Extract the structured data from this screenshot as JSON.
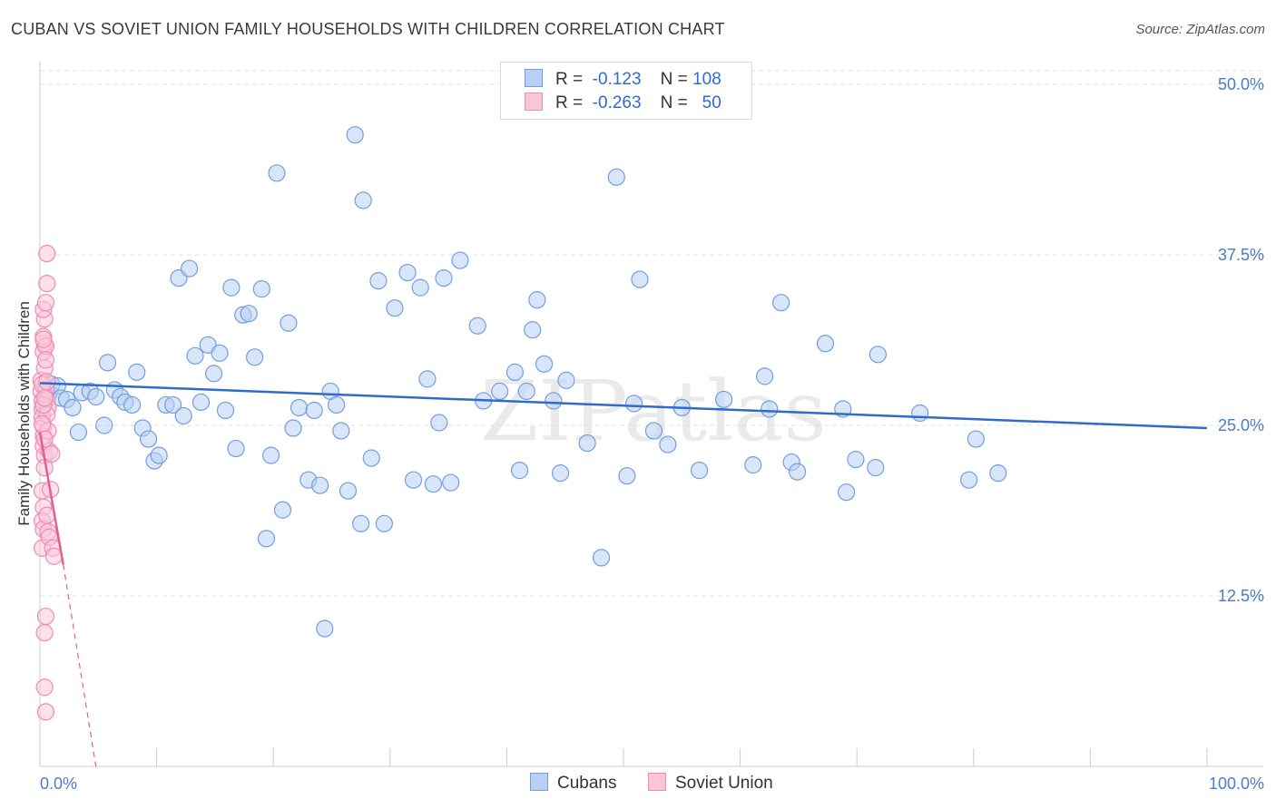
{
  "title": "CUBAN VS SOVIET UNION FAMILY HOUSEHOLDS WITH CHILDREN CORRELATION CHART",
  "source": "Source: ZipAtlas.com",
  "watermark": "ZIPatlas",
  "legend": {
    "rows": [
      {
        "r_label": "R =",
        "r_value": "-0.123",
        "n_label": "N =",
        "n_value": "108"
      },
      {
        "r_label": "R =",
        "r_value": "-0.263",
        "n_label": "N =",
        "n_value": "50"
      }
    ]
  },
  "bottom_legend": [
    "Cubans",
    "Soviet Union"
  ],
  "chart_data": {
    "type": "scatter",
    "title": "CUBAN VS SOVIET UNION FAMILY HOUSEHOLDS WITH CHILDREN CORRELATION CHART",
    "xlabel": "",
    "ylabel": "Family Households with Children",
    "xlim": [
      0,
      100
    ],
    "ylim": [
      0,
      51
    ],
    "x_tick_labels": [
      "0.0%",
      "100.0%"
    ],
    "y_ticks": [
      12.5,
      25.0,
      37.5,
      50.0
    ],
    "y_tick_labels": [
      "12.5%",
      "25.0%",
      "37.5%",
      "50.0%"
    ],
    "grid": true,
    "legend_position": "top-center",
    "colors": {
      "Cubans": "#6f9fe0",
      "Soviet Union": "#f08ab0",
      "Cubans_line": "#2f6bcc",
      "Soviet_line": "#e0608f"
    },
    "series": [
      {
        "name": "Cubans",
        "points": [
          [
            0.8,
            27.4
          ],
          [
            1.0,
            28.0
          ],
          [
            1.5,
            27.9
          ],
          [
            1.8,
            27.0
          ],
          [
            2.3,
            26.9
          ],
          [
            2.8,
            26.3
          ],
          [
            3.3,
            24.5
          ],
          [
            3.6,
            27.4
          ],
          [
            4.3,
            27.5
          ],
          [
            4.8,
            27.1
          ],
          [
            5.5,
            25.0
          ],
          [
            5.8,
            29.6
          ],
          [
            6.4,
            27.6
          ],
          [
            6.9,
            27.1
          ],
          [
            7.3,
            26.7
          ],
          [
            7.9,
            26.5
          ],
          [
            8.3,
            28.9
          ],
          [
            8.8,
            24.8
          ],
          [
            9.3,
            24.0
          ],
          [
            9.8,
            22.4
          ],
          [
            10.2,
            22.8
          ],
          [
            10.8,
            26.5
          ],
          [
            11.4,
            26.5
          ],
          [
            11.9,
            35.8
          ],
          [
            12.3,
            25.7
          ],
          [
            12.8,
            36.5
          ],
          [
            13.3,
            30.1
          ],
          [
            13.8,
            26.7
          ],
          [
            14.4,
            30.9
          ],
          [
            14.9,
            28.8
          ],
          [
            15.4,
            30.3
          ],
          [
            15.9,
            26.1
          ],
          [
            16.4,
            35.1
          ],
          [
            16.8,
            23.3
          ],
          [
            17.4,
            33.1
          ],
          [
            17.9,
            33.2
          ],
          [
            18.4,
            30.0
          ],
          [
            19.0,
            35.0
          ],
          [
            19.4,
            16.7
          ],
          [
            19.8,
            22.8
          ],
          [
            20.3,
            43.5
          ],
          [
            20.8,
            18.8
          ],
          [
            21.3,
            32.5
          ],
          [
            21.7,
            24.8
          ],
          [
            22.2,
            26.3
          ],
          [
            23.0,
            21.0
          ],
          [
            23.5,
            26.1
          ],
          [
            24.0,
            20.6
          ],
          [
            24.4,
            10.1
          ],
          [
            24.9,
            27.5
          ],
          [
            25.4,
            26.5
          ],
          [
            25.8,
            24.6
          ],
          [
            26.4,
            20.2
          ],
          [
            27.0,
            46.3
          ],
          [
            27.5,
            17.8
          ],
          [
            27.7,
            41.5
          ],
          [
            28.4,
            22.6
          ],
          [
            29.0,
            35.6
          ],
          [
            29.5,
            17.8
          ],
          [
            30.4,
            33.6
          ],
          [
            31.5,
            36.2
          ],
          [
            32.0,
            21.0
          ],
          [
            32.6,
            35.1
          ],
          [
            33.2,
            28.4
          ],
          [
            33.7,
            20.7
          ],
          [
            34.2,
            25.2
          ],
          [
            34.6,
            35.8
          ],
          [
            35.2,
            20.8
          ],
          [
            36.0,
            37.1
          ],
          [
            37.5,
            32.3
          ],
          [
            38.0,
            26.8
          ],
          [
            39.4,
            27.5
          ],
          [
            40.7,
            28.9
          ],
          [
            41.1,
            21.7
          ],
          [
            41.7,
            27.5
          ],
          [
            42.2,
            32.0
          ],
          [
            42.6,
            34.2
          ],
          [
            43.2,
            29.5
          ],
          [
            44.0,
            26.8
          ],
          [
            44.6,
            21.5
          ],
          [
            45.1,
            28.3
          ],
          [
            46.9,
            23.7
          ],
          [
            48.1,
            15.3
          ],
          [
            49.4,
            43.2
          ],
          [
            50.3,
            21.3
          ],
          [
            50.9,
            26.6
          ],
          [
            51.4,
            35.7
          ],
          [
            52.6,
            24.6
          ],
          [
            53.8,
            23.6
          ],
          [
            55.0,
            26.3
          ],
          [
            56.5,
            21.7
          ],
          [
            58.6,
            26.9
          ],
          [
            61.1,
            22.1
          ],
          [
            62.1,
            28.6
          ],
          [
            62.5,
            26.2
          ],
          [
            63.5,
            34.0
          ],
          [
            64.4,
            22.3
          ],
          [
            64.9,
            21.6
          ],
          [
            67.3,
            31.0
          ],
          [
            68.8,
            26.2
          ],
          [
            69.1,
            20.1
          ],
          [
            69.9,
            22.5
          ],
          [
            71.6,
            21.9
          ],
          [
            71.8,
            30.2
          ],
          [
            75.4,
            25.9
          ],
          [
            79.6,
            21.0
          ],
          [
            80.2,
            24.0
          ],
          [
            82.1,
            21.5
          ]
        ],
        "trend": {
          "x": [
            0.0,
            100.0
          ],
          "y": [
            28.1,
            24.8
          ],
          "style": "solid"
        }
      },
      {
        "name": "Soviet Union",
        "points": [
          [
            0.1,
            28.3
          ],
          [
            0.1,
            27.5
          ],
          [
            0.2,
            26.8
          ],
          [
            0.2,
            26.2
          ],
          [
            0.2,
            25.6
          ],
          [
            0.3,
            24.9
          ],
          [
            0.3,
            24.2
          ],
          [
            0.3,
            23.5
          ],
          [
            0.4,
            22.8
          ],
          [
            0.4,
            21.9
          ],
          [
            0.2,
            20.2
          ],
          [
            0.3,
            19.0
          ],
          [
            0.2,
            18.0
          ],
          [
            0.3,
            17.4
          ],
          [
            0.2,
            16.0
          ],
          [
            0.4,
            29.2
          ],
          [
            0.3,
            30.4
          ],
          [
            0.4,
            31.0
          ],
          [
            0.3,
            31.5
          ],
          [
            0.4,
            32.8
          ],
          [
            0.3,
            33.5
          ],
          [
            0.5,
            34.0
          ],
          [
            0.6,
            35.4
          ],
          [
            0.6,
            37.6
          ],
          [
            0.5,
            30.8
          ],
          [
            0.5,
            27.6
          ],
          [
            0.6,
            26.9
          ],
          [
            0.7,
            26.3
          ],
          [
            0.6,
            25.8
          ],
          [
            0.7,
            24.6
          ],
          [
            0.8,
            23.1
          ],
          [
            1.0,
            22.9
          ],
          [
            0.9,
            20.3
          ],
          [
            0.6,
            18.4
          ],
          [
            0.7,
            17.2
          ],
          [
            0.8,
            16.8
          ],
          [
            1.1,
            16.0
          ],
          [
            1.2,
            15.4
          ],
          [
            0.5,
            11.0
          ],
          [
            0.4,
            9.8
          ],
          [
            0.4,
            5.8
          ],
          [
            0.5,
            4.0
          ],
          [
            0.2,
            28.0
          ],
          [
            0.3,
            26.5
          ],
          [
            0.2,
            25.1
          ],
          [
            0.4,
            27.0
          ],
          [
            0.6,
            28.2
          ],
          [
            0.5,
            29.8
          ],
          [
            0.3,
            31.3
          ],
          [
            0.4,
            24.0
          ]
        ],
        "trend": {
          "x": [
            0.0,
            2.0
          ],
          "y": [
            24.5,
            14.8
          ],
          "style": "solid"
        },
        "trend_extension": {
          "x": [
            2.0,
            4.8
          ],
          "y": [
            14.8,
            0.0
          ],
          "style": "dashed"
        }
      }
    ]
  }
}
